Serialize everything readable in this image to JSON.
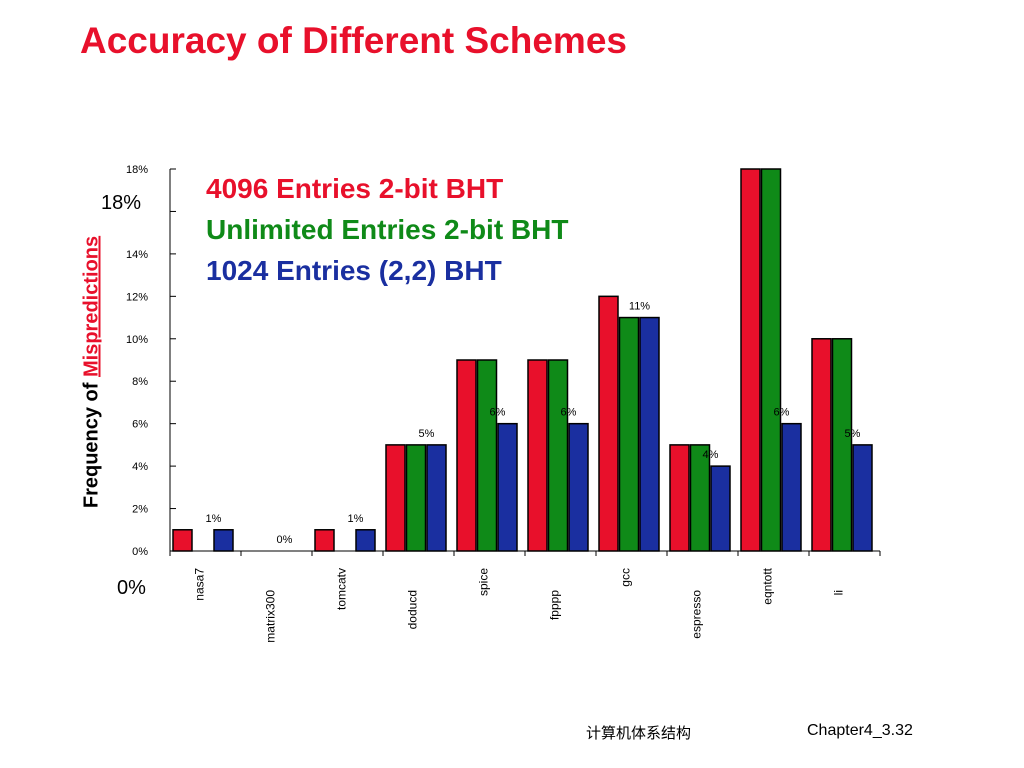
{
  "slide": {
    "title": "Accuracy of Different Schemes",
    "title_color": "#e8102b",
    "footer_course": "计算机体系结构",
    "footer_page": "Chapter4_3.32",
    "big_y_top": "18%",
    "big_y_bottom": "0%",
    "ylabel_prefix": "Frequency of ",
    "ylabel_highlight": "Mispredictions",
    "legend": [
      {
        "text": "4096 Entries 2-bit BHT",
        "color": "#e8102b"
      },
      {
        "text": "Unlimited Entries 2-bit BHT",
        "color": "#0f8a18"
      },
      {
        "text": "1024 Entries (2,2) BHT",
        "color": "#1a2fa0"
      }
    ]
  },
  "chart_data": {
    "type": "bar",
    "categories": [
      "nasa7",
      "matrix300",
      "tomcatv",
      "doducd",
      "spice",
      "fpppp",
      "gcc",
      "espresso",
      "eqntott",
      "li"
    ],
    "series": [
      {
        "name": "4096 Entries 2-bit BHT",
        "color": "#e8102b",
        "values": [
          1,
          0,
          1,
          5,
          9,
          9,
          12,
          5,
          18,
          10
        ]
      },
      {
        "name": "Unlimited Entries 2-bit BHT",
        "color": "#0f8a18",
        "values": [
          0,
          0,
          0,
          5,
          9,
          9,
          11,
          5,
          18,
          10
        ]
      },
      {
        "name": "1024 Entries (2,2) BHT",
        "color": "#1a2fa0",
        "values": [
          1,
          0,
          1,
          5,
          6,
          6,
          11,
          4,
          6,
          5
        ]
      }
    ],
    "data_labels": [
      "1%",
      "0%",
      "1%",
      "5%",
      "6%",
      "6%",
      "11%",
      "4%",
      "6%",
      "5%"
    ],
    "y_ticks": [
      "0%",
      "2%",
      "4%",
      "6%",
      "8%",
      "10%",
      "12%",
      "14%",
      "",
      "18%"
    ],
    "ylim": [
      0,
      18
    ],
    "grid": false,
    "legend_position": "top-left"
  }
}
